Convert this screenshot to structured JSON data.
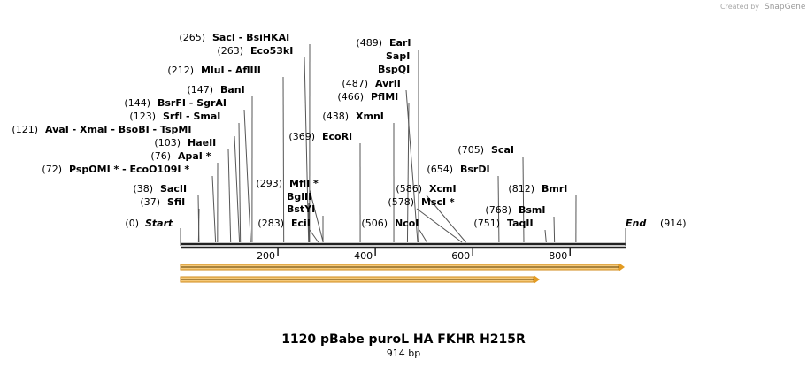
{
  "credit": "Created by",
  "brand": "SnapGene",
  "title": "1120 pBabe puroL HA FKHR H215R",
  "subtitle": "914 bp",
  "ruler": {
    "ticks": [
      "200",
      "400",
      "600",
      "800"
    ]
  },
  "start": {
    "position": "(0)",
    "label": "Start"
  },
  "end": {
    "label": "End",
    "position": "(914)"
  },
  "sites": [
    {
      "position": "(265)",
      "label": "SacI  - BsiHKAI"
    },
    {
      "position": "(263)",
      "label": "Eco53kI"
    },
    {
      "position": "(212)",
      "label": "MluI  - AflIII"
    },
    {
      "position": "(147)",
      "label": "BanI"
    },
    {
      "position": "(144)",
      "label": "BsrFI  - SgrAI"
    },
    {
      "position": "(123)",
      "label": "SrfI  - SmaI"
    },
    {
      "position": "(121)",
      "label": "AvaI  - XmaI  - BsoBI  - TspMI"
    },
    {
      "position": "(103)",
      "label": "HaeII"
    },
    {
      "position": "(76)",
      "label": "ApaI *"
    },
    {
      "position": "(72)",
      "label": "PspOMI *  - EcoO109I *"
    },
    {
      "position": "(38)",
      "label": "SacII"
    },
    {
      "position": "(37)",
      "label": "SfiI"
    },
    {
      "position": "(293)",
      "label": "MflI *"
    },
    {
      "label": "BglII"
    },
    {
      "label": "BstYI"
    },
    {
      "position": "(283)",
      "label": "EciI"
    },
    {
      "position": "(489)",
      "label": "EarI"
    },
    {
      "label": "SapI"
    },
    {
      "label": "BspQI"
    },
    {
      "position": "(487)",
      "label": "AvrII"
    },
    {
      "position": "(466)",
      "label": "PflMI"
    },
    {
      "position": "(438)",
      "label": "XmnI"
    },
    {
      "position": "(369)",
      "label": "EcoRI"
    },
    {
      "position": "(506)",
      "label": "NcoI"
    },
    {
      "position": "(586)",
      "label": "XcmI"
    },
    {
      "position": "(578)",
      "label": "MscI *"
    },
    {
      "position": "(705)",
      "label": "ScaI"
    },
    {
      "position": "(654)",
      "label": "BsrDI"
    },
    {
      "position": "(812)",
      "label": "BmrI"
    },
    {
      "position": "(768)",
      "label": "BsmI"
    },
    {
      "position": "(751)",
      "label": "TaqII"
    }
  ]
}
